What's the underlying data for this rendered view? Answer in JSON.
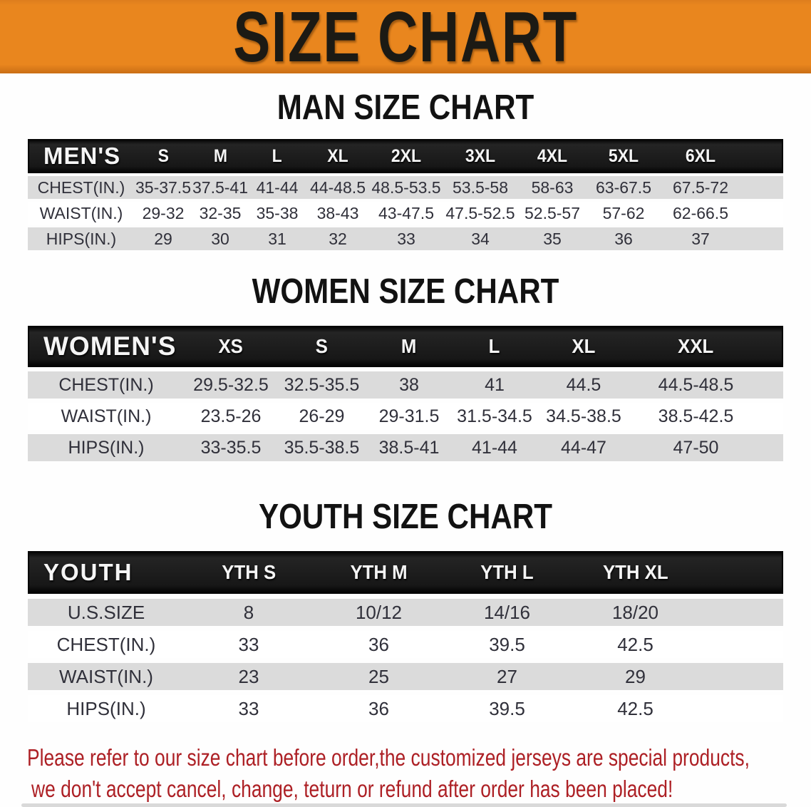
{
  "banner": {
    "title": "SIZE CHART"
  },
  "colors": {
    "banner_orange": "#e9861e",
    "header_bar_black": "#171717",
    "row_shade_gray": "#dbdbdb",
    "body_text": "#30303a",
    "note_red": "#ad2025"
  },
  "men": {
    "heading": "MAN SIZE CHART",
    "corner_label": "MEN'S",
    "columns": [
      "S",
      "M",
      "L",
      "XL",
      "2XL",
      "3XL",
      "4XL",
      "5XL",
      "6XL"
    ],
    "rows": [
      {
        "label": "CHEST(IN.)",
        "values": [
          "35-37.5",
          "37.5-41",
          "41-44",
          "44-48.5",
          "48.5-53.5",
          "53.5-58",
          "58-63",
          "63-67.5",
          "67.5-72"
        ]
      },
      {
        "label": "WAIST(IN.)",
        "values": [
          "29-32",
          "32-35",
          "35-38",
          "38-43",
          "43-47.5",
          "47.5-52.5",
          "52.5-57",
          "57-62",
          "62-66.5"
        ]
      },
      {
        "label": "HIPS(IN.)",
        "values": [
          "29",
          "30",
          "31",
          "32",
          "33",
          "34",
          "35",
          "36",
          "37"
        ]
      }
    ]
  },
  "women": {
    "heading": "WOMEN SIZE CHART",
    "corner_label": "WOMEN'S",
    "columns": [
      "XS",
      "S",
      "M",
      "L",
      "XL",
      "XXL"
    ],
    "rows": [
      {
        "label": "CHEST(IN.)",
        "values": [
          "29.5-32.5",
          "32.5-35.5",
          "38",
          "41",
          "44.5",
          "44.5-48.5"
        ]
      },
      {
        "label": "WAIST(IN.)",
        "values": [
          "23.5-26",
          "26-29",
          "29-31.5",
          "31.5-34.5",
          "34.5-38.5",
          "38.5-42.5"
        ]
      },
      {
        "label": "HIPS(IN.)",
        "values": [
          "33-35.5",
          "35.5-38.5",
          "38.5-41",
          "41-44",
          "44-47",
          "47-50"
        ]
      }
    ]
  },
  "youth": {
    "heading": "YOUTH SIZE CHART",
    "corner_label": "YOUTH",
    "columns": [
      "YTH S",
      "YTH M",
      "YTH L",
      "YTH XL"
    ],
    "rows": [
      {
        "label": "U.S.SIZE",
        "values": [
          "8",
          "10/12",
          "14/16",
          "18/20"
        ]
      },
      {
        "label": "CHEST(IN.)",
        "values": [
          "33",
          "36",
          "39.5",
          "42.5"
        ]
      },
      {
        "label": "WAIST(IN.)",
        "values": [
          "23",
          "25",
          "27",
          "29"
        ]
      },
      {
        "label": "HIPS(IN.)",
        "values": [
          "33",
          "36",
          "39.5",
          "42.5"
        ]
      }
    ]
  },
  "note": {
    "lines": [
      "Please refer to our size chart before order,the customized jerseys are special products,",
      "we don't accept cancel, change, teturn or refund after order has been placed!"
    ]
  }
}
